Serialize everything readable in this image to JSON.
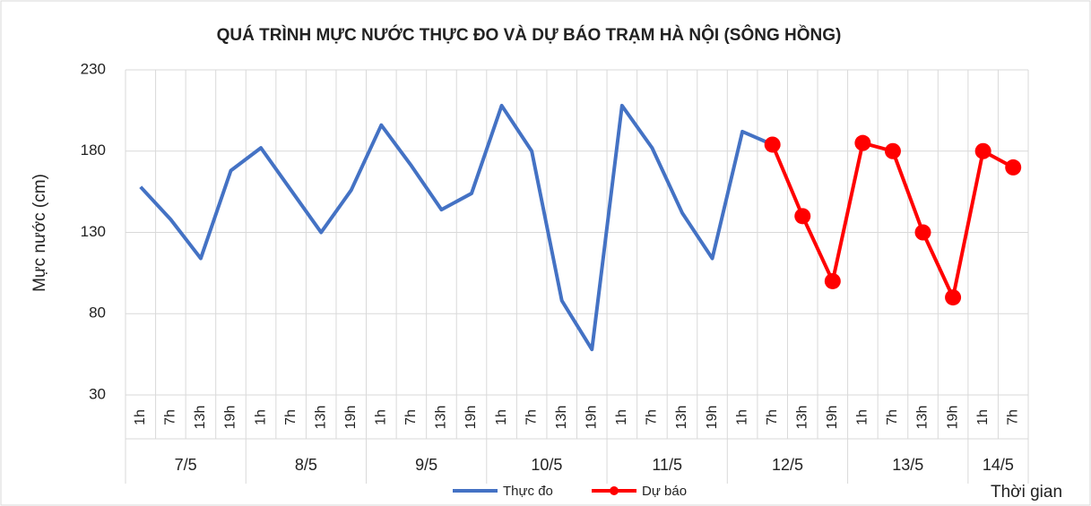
{
  "chart_data": {
    "type": "line",
    "title": "QUÁ TRÌNH MỰC NƯỚC THỰC ĐO VÀ DỰ BÁO TRẠM HÀ NỘI (SÔNG HỒNG)",
    "ylabel": "Mực nước (cm)",
    "xlabel": "Thời gian",
    "groups": [
      {
        "label": "7/5",
        "hours": [
          "1h",
          "7h",
          "13h",
          "19h"
        ]
      },
      {
        "label": "8/5",
        "hours": [
          "1h",
          "7h",
          "13h",
          "19h"
        ]
      },
      {
        "label": "9/5",
        "hours": [
          "1h",
          "7h",
          "13h",
          "19h"
        ]
      },
      {
        "label": "10/5",
        "hours": [
          "1h",
          "7h",
          "13h",
          "19h"
        ]
      },
      {
        "label": "11/5",
        "hours": [
          "1h",
          "7h",
          "13h",
          "19h"
        ]
      },
      {
        "label": "12/5",
        "hours": [
          "1h",
          "7h",
          "13h",
          "19h"
        ]
      },
      {
        "label": "13/5",
        "hours": [
          "1h",
          "7h",
          "13h",
          "19h"
        ]
      },
      {
        "label": "14/5",
        "hours": [
          "1h",
          "7h"
        ]
      }
    ],
    "series": [
      {
        "name": "Thực đo",
        "color": "#4472c4",
        "markers": false,
        "values": [
          158,
          138,
          114,
          168,
          182,
          156,
          130,
          156,
          196,
          171,
          144,
          154,
          208,
          180,
          88,
          58,
          208,
          182,
          142,
          114,
          192,
          184,
          null,
          null,
          null,
          null,
          null,
          null,
          null,
          null
        ]
      },
      {
        "name": "Dự báo",
        "color": "#ff0000",
        "markers": true,
        "values": [
          null,
          null,
          null,
          null,
          null,
          null,
          null,
          null,
          null,
          null,
          null,
          null,
          null,
          null,
          null,
          null,
          null,
          null,
          null,
          null,
          null,
          184,
          140,
          100,
          185,
          180,
          130,
          90,
          180,
          170
        ]
      }
    ],
    "ylim": [
      30,
      230
    ],
    "yticks": [
      30,
      80,
      130,
      180,
      230
    ],
    "grid": true,
    "legend": "bottom"
  }
}
